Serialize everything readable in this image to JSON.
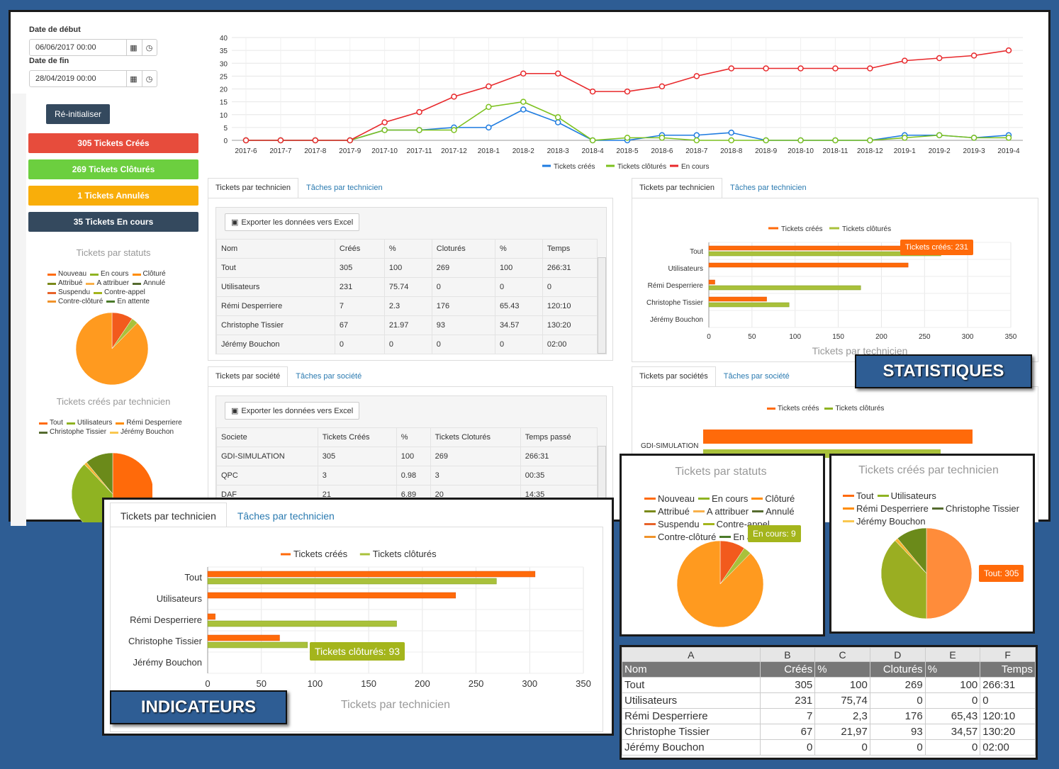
{
  "filters": {
    "start_label": "Date de début",
    "start_value": "06/06/2017 00:00",
    "end_label": "Date de fin",
    "end_value": "28/04/2019 00:00",
    "reset": "Ré-initialiser"
  },
  "stats": {
    "created": "305 Tickets Créés",
    "closed": "269 Tickets Clôturés",
    "cancelled": "1 Tickets Annulés",
    "ongoing": "35 Tickets En cours"
  },
  "colors": {
    "red": "#e74c3c",
    "green": "#6ccf3f",
    "yellow": "#f9ae0a",
    "dark": "#34495e",
    "orange": "#ff6a0a",
    "olive": "#8fb322"
  },
  "side_pie1": {
    "title": "Tickets par statuts",
    "legend": [
      "Nouveau",
      "En cours",
      "Clôturé",
      "Attribué",
      "A attribuer",
      "Annulé",
      "Suspendu",
      "Contre-appel",
      "Contre-clôturé",
      "En attente"
    ]
  },
  "side_pie2": {
    "title": "Tickets créés par technicien",
    "legend": [
      "Tout",
      "Utilisateurs",
      "Rémi Desperriere",
      "Christophe Tissier",
      "Jérémy Bouchon"
    ]
  },
  "line_chart": {
    "legend": [
      "Tickets créés",
      "Tickets clôturés",
      "En cours"
    ]
  },
  "chart_data": [
    {
      "type": "line",
      "categories": [
        "2017-6",
        "2017-7",
        "2017-8",
        "2017-9",
        "2017-10",
        "2017-11",
        "2017-12",
        "2018-1",
        "2018-2",
        "2018-3",
        "2018-4",
        "2018-5",
        "2018-6",
        "2018-7",
        "2018-8",
        "2018-9",
        "2018-10",
        "2018-11",
        "2018-12",
        "2019-1",
        "2019-2",
        "2019-3",
        "2019-4"
      ],
      "series": [
        {
          "name": "Tickets créés",
          "values": [
            0,
            0,
            0,
            0,
            4,
            4,
            5,
            5,
            12,
            7,
            0,
            0,
            2,
            2,
            3,
            0,
            0,
            0,
            0,
            2,
            2,
            1,
            2
          ]
        },
        {
          "name": "Tickets clôturés",
          "values": [
            0,
            0,
            0,
            0,
            4,
            4,
            4,
            13,
            15,
            9,
            0,
            1,
            1,
            0,
            0,
            0,
            0,
            0,
            0,
            1,
            2,
            1,
            1
          ]
        },
        {
          "name": "En cours",
          "values": [
            0,
            0,
            0,
            0,
            7,
            11,
            17,
            21,
            26,
            26,
            19,
            19,
            21,
            25,
            28,
            28,
            28,
            28,
            28,
            31,
            32,
            33,
            35
          ]
        }
      ],
      "yticks": [
        "0",
        "5",
        "10",
        "15",
        "20",
        "25",
        "30",
        "35",
        "40"
      ],
      "ylim": [
        0,
        40
      ]
    },
    {
      "type": "bar",
      "categories": [
        "Tout",
        "Utilisateurs",
        "Rémi Desperriere",
        "Christophe Tissier",
        "Jérémy Bouchon"
      ],
      "series": [
        {
          "name": "Tickets créés",
          "values": [
            305,
            231,
            7,
            67,
            0
          ]
        },
        {
          "name": "Tickets clôturés",
          "values": [
            269,
            0,
            176,
            93,
            0
          ]
        }
      ],
      "xticks": [
        "0",
        "50",
        "100",
        "150",
        "200",
        "250",
        "300",
        "350"
      ],
      "xlim": [
        0,
        350
      ],
      "title": "Tickets par technicien"
    },
    {
      "type": "pie",
      "title": "Tickets par statuts",
      "values": [
        {
          "name": "Contre-clôturé",
          "value": 269
        },
        {
          "name": "Nouveau",
          "value": 29
        },
        {
          "name": "En cours",
          "value": 9
        }
      ]
    },
    {
      "type": "pie",
      "title": "Tickets créés par technicien",
      "values": [
        {
          "name": "Tout",
          "value": 305
        },
        {
          "name": "Utilisateurs",
          "value": 231
        },
        {
          "name": "Rémi Desperriere",
          "value": 7
        },
        {
          "name": "Christophe Tissier",
          "value": 67
        }
      ]
    }
  ],
  "tabs": {
    "tech": "Tickets par technicien",
    "tasks_tech": "Tâches par technicien",
    "soc": "Tickets par société",
    "tasks_soc": "Tâches par société",
    "socs": "Tickets par sociétés"
  },
  "export": "Exporter les données vers Excel",
  "tech_table": {
    "headers": [
      "Nom",
      "Créés",
      "%",
      "Cloturés",
      "%",
      "Temps"
    ],
    "rows": [
      [
        "Tout",
        "305",
        "100",
        "269",
        "100",
        "266:31"
      ],
      [
        "Utilisateurs",
        "231",
        "75.74",
        "0",
        "0",
        "0"
      ],
      [
        "Rémi Desperriere",
        "7",
        "2.3",
        "176",
        "65.43",
        "120:10"
      ],
      [
        "Christophe Tissier",
        "67",
        "21.97",
        "93",
        "34.57",
        "130:20"
      ],
      [
        "Jérémy Bouchon",
        "0",
        "0",
        "0",
        "0",
        "02:00"
      ]
    ]
  },
  "soc_table": {
    "headers": [
      "Societe",
      "Tickets Créés",
      "%",
      "Tickets Cloturés",
      "Temps passé"
    ],
    "rows": [
      [
        "GDI-SIMULATION",
        "305",
        "100",
        "269",
        "266:31"
      ],
      [
        "QPC",
        "3",
        "0.98",
        "3",
        "00:35"
      ],
      [
        "DAF",
        "21",
        "6.89",
        "20",
        "14:35"
      ]
    ]
  },
  "soc_chart": {
    "legend": [
      "Tickets créés",
      "Tickets clôturés"
    ],
    "label": "GDI-SIMULATION"
  },
  "tips": {
    "created": "Tickets créés: 231",
    "closed": "Tickets clôturés: 93",
    "ongoing": "En cours: 9",
    "tout": "Tout: 305"
  },
  "banners": {
    "stats": "STATISTIQUES",
    "ind": "INDICATEURS"
  },
  "excel": {
    "cols": [
      "A",
      "B",
      "C",
      "D",
      "E",
      "F"
    ],
    "headers": [
      "Nom",
      "Créés",
      "%",
      "Cloturés",
      "%",
      "Temps"
    ],
    "rows": [
      [
        "Tout",
        "305",
        "100",
        "269",
        "100",
        "266:31"
      ],
      [
        "Utilisateurs",
        "231",
        "75,74",
        "0",
        "0",
        "0"
      ],
      [
        "Rémi Desperriere",
        "7",
        "2,3",
        "176",
        "65,43",
        "120:10"
      ],
      [
        "Christophe Tissier",
        "67",
        "21,97",
        "93",
        "34,57",
        "130:20"
      ],
      [
        "Jérémy Bouchon",
        "0",
        "0",
        "0",
        "0",
        "02:00"
      ]
    ]
  }
}
